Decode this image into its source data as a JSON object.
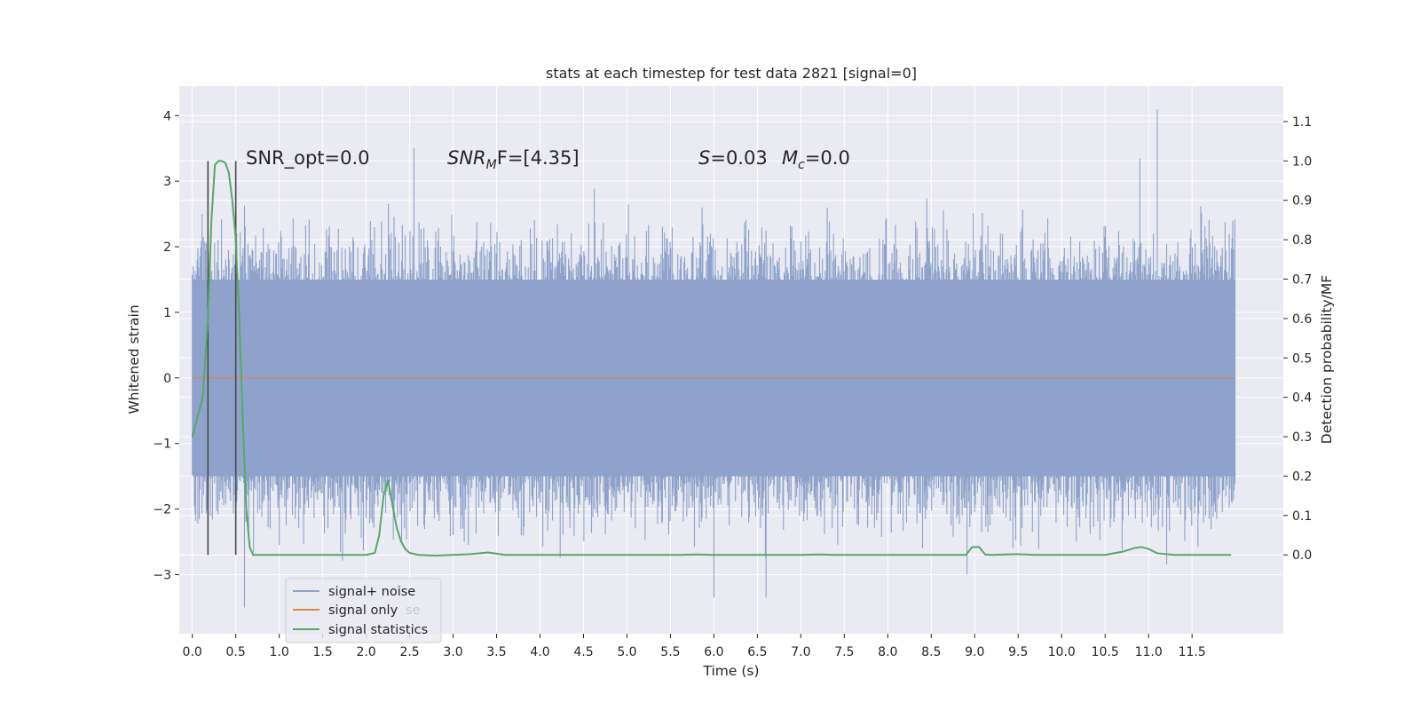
{
  "chart_data": {
    "type": "line",
    "title": "stats at each timestep for test data 2821 [signal=0]",
    "xlabel": "Time (s)",
    "ylabel_left": "Whitened strain",
    "ylabel_right": "Detection probability/MF",
    "xlim": [
      -0.15,
      12.55
    ],
    "ylim_left": [
      -3.9,
      4.45
    ],
    "ylim_right": [
      -0.2,
      1.19
    ],
    "x_ticks": [
      0.0,
      0.5,
      1.0,
      1.5,
      2.0,
      2.5,
      3.0,
      3.5,
      4.0,
      4.5,
      5.0,
      5.5,
      6.0,
      6.5,
      7.0,
      7.5,
      8.0,
      8.5,
      9.0,
      9.5,
      10.0,
      10.5,
      11.0,
      11.5
    ],
    "x_tick_labels": [
      "0.0",
      "0.5",
      "1.0",
      "1.5",
      "2.0",
      "2.5",
      "3.0",
      "3.5",
      "4.0",
      "4.5",
      "5.0",
      "5.5",
      "6.0",
      "6.5",
      "7.0",
      "7.5",
      "8.0",
      "8.5",
      "9.0",
      "9.5",
      "10.0",
      "10.5",
      "11.0",
      "11.5"
    ],
    "y_left_ticks": [
      -3,
      -2,
      -1,
      0,
      1,
      2,
      3,
      4
    ],
    "y_left_tick_labels": [
      "−3",
      "−2",
      "−1",
      "0",
      "1",
      "2",
      "3",
      "4"
    ],
    "y_right_ticks": [
      0.0,
      0.1,
      0.2,
      0.3,
      0.4,
      0.5,
      0.6,
      0.7,
      0.8,
      0.9,
      1.0,
      1.1
    ],
    "y_right_tick_labels": [
      "0.0",
      "0.1",
      "0.2",
      "0.3",
      "0.4",
      "0.5",
      "0.6",
      "0.7",
      "0.8",
      "0.9",
      "1.0",
      "1.1"
    ],
    "grid": true,
    "legend_position": "lower-left",
    "series": [
      {
        "name": "signal+ noise",
        "axis": "left",
        "color": "#8ea2cb",
        "x_range": [
          0.0,
          12.0
        ],
        "envelope": {
          "bulk_low": -1.5,
          "bulk_high": 1.5,
          "max": 4.1,
          "min": -3.5
        },
        "notable_peaks": [
          {
            "x": 11.1,
            "y": 4.1
          },
          {
            "x": 2.55,
            "y": 3.5
          },
          {
            "x": 10.9,
            "y": 3.35
          },
          {
            "x": 0.6,
            "y": -3.5
          },
          {
            "x": 6.6,
            "y": -3.35
          },
          {
            "x": 6.0,
            "y": -3.35
          }
        ]
      },
      {
        "name": "signal only",
        "axis": "left",
        "color": "#dd8452",
        "x": [
          0.0,
          12.0
        ],
        "values": [
          0.0,
          0.0
        ]
      },
      {
        "name": "signal statistics",
        "axis": "right",
        "color": "#55a868",
        "x": [
          0.0,
          0.12,
          0.18,
          0.22,
          0.26,
          0.3,
          0.34,
          0.38,
          0.42,
          0.46,
          0.5,
          0.54,
          0.58,
          0.62,
          0.66,
          0.7,
          0.75,
          0.8,
          0.9,
          1.2,
          1.6,
          2.0,
          2.1,
          2.15,
          2.2,
          2.25,
          2.3,
          2.35,
          2.4,
          2.45,
          2.5,
          2.6,
          2.8,
          3.0,
          3.2,
          3.4,
          3.6,
          4.0,
          5.0,
          5.6,
          5.8,
          6.0,
          7.0,
          7.2,
          7.4,
          8.0,
          8.9,
          8.97,
          9.05,
          9.12,
          9.2,
          9.5,
          9.7,
          10.0,
          10.5,
          10.7,
          10.85,
          10.92,
          11.0,
          11.1,
          11.3,
          11.95
        ],
        "values": [
          0.3,
          0.4,
          0.6,
          0.85,
          0.99,
          1.0,
          1.0,
          0.995,
          0.97,
          0.9,
          0.8,
          0.6,
          0.35,
          0.12,
          0.02,
          0.0,
          0.0,
          -0.0,
          0.0,
          0.0,
          0.0,
          0.0,
          0.005,
          0.05,
          0.15,
          0.19,
          0.13,
          0.07,
          0.035,
          0.015,
          0.005,
          0.0,
          -0.002,
          0.0,
          0.002,
          0.006,
          0.0,
          0.0,
          0.0,
          0.0,
          0.001,
          0.0,
          0.0,
          0.001,
          0.0,
          0.0,
          0.0,
          0.02,
          0.02,
          0.001,
          0.0,
          0.002,
          0.0,
          0.0,
          0.0,
          0.008,
          0.018,
          0.02,
          0.015,
          0.004,
          0.0,
          0.0
        ]
      }
    ],
    "vertical_markers": {
      "color": "#4a4a4a",
      "axis": "right",
      "lines": [
        {
          "x": 0.18,
          "y_from": 0.0,
          "y_to": 1.0
        },
        {
          "x": 0.5,
          "y_from": 0.0,
          "y_to": 1.0
        }
      ]
    },
    "annotations": [
      {
        "id": "snr-opt",
        "text": "SNR_opt=0.0"
      },
      {
        "id": "snr-mf",
        "text": "SNR_MF=[4.35]",
        "parts": [
          "SNR",
          "M",
          "F=[4.35]"
        ]
      },
      {
        "id": "s-value",
        "text": "S=0.03",
        "parts": [
          "S",
          "=0.03"
        ]
      },
      {
        "id": "mc-value",
        "text": "M_c=0.0",
        "parts": [
          "M",
          "c",
          "=0.0"
        ]
      }
    ],
    "legend": [
      {
        "label": "signal+ noise",
        "color": "#8ea2cb"
      },
      {
        "label": "signal only",
        "color": "#dd8452"
      },
      {
        "label": "signal statistics",
        "color": "#55a868"
      }
    ],
    "legend_overlap_text": "se",
    "style": {
      "plot_background": "#eaeaf2",
      "grid_color": "#ffffff",
      "text_color": "#262626"
    }
  }
}
